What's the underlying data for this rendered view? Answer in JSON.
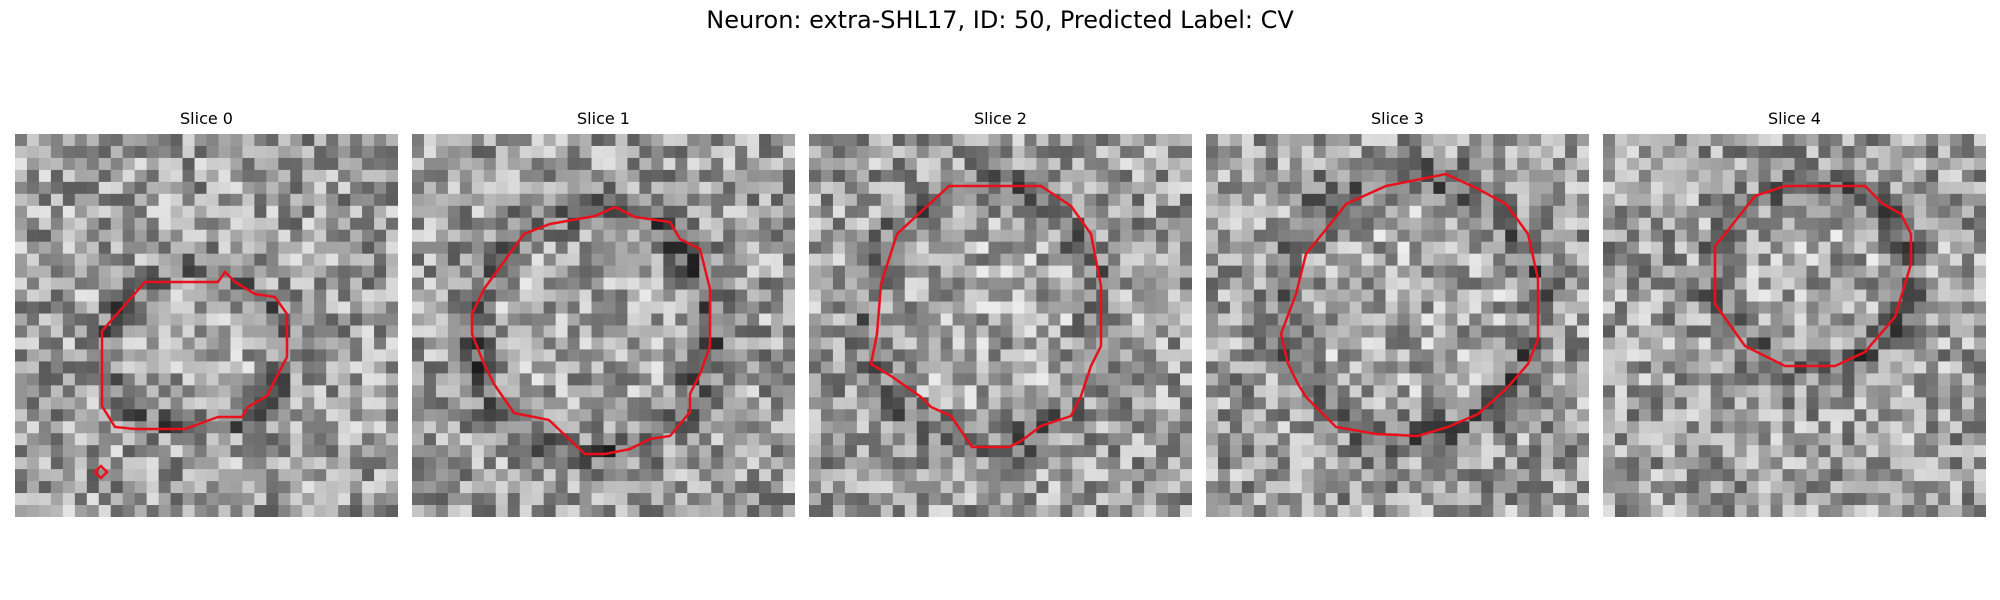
{
  "figure": {
    "title": "Neuron: extra-SHL17, ID: 50, Predicted Label: CV"
  },
  "colors": {
    "contour": "#e8111b",
    "background": "#ffffff"
  },
  "colormap": "grayscale",
  "panels": [
    {
      "title": "Slice 0",
      "seed": 17,
      "darkness": 0.45
    },
    {
      "title": "Slice 1",
      "seed": 29,
      "darkness": 0.55
    },
    {
      "title": "Slice 2",
      "seed": 43,
      "darkness": 0.4
    },
    {
      "title": "Slice 3",
      "seed": 61,
      "darkness": 0.5
    },
    {
      "title": "Slice 4",
      "seed": 83,
      "darkness": 0.5
    }
  ]
}
